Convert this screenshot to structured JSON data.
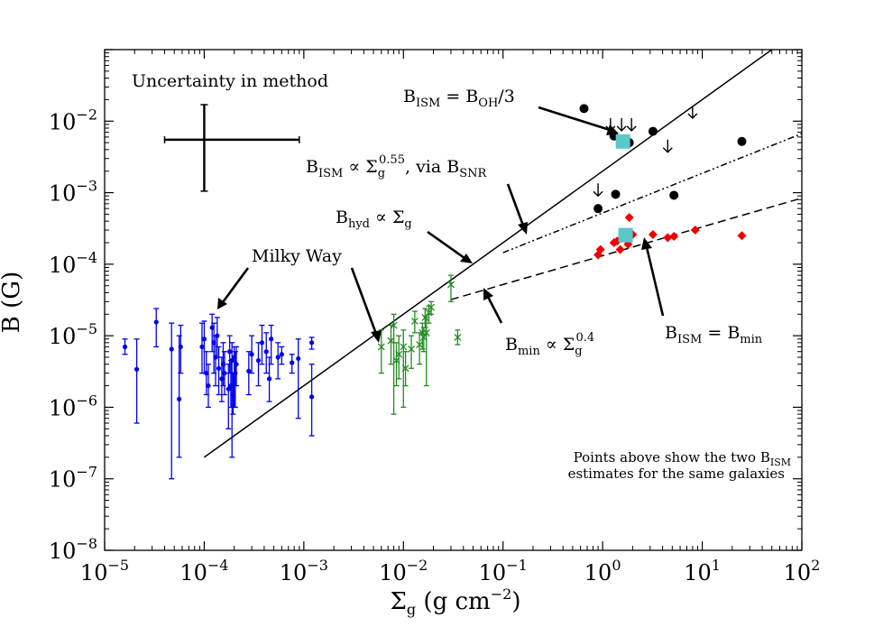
{
  "chart_data": {
    "type": "scatter",
    "xscale": "log",
    "yscale": "log",
    "xlim": [
      1e-05,
      100
    ],
    "ylim": [
      1e-08,
      0.1
    ],
    "xlabel": {
      "main": "Σ",
      "sub": "g",
      "rest": " (g cm",
      "sup": "−2",
      "close": ")"
    },
    "ylabel": "B (G)",
    "x_ticks": [
      {
        "base": "10",
        "exp": "−5",
        "value": 1e-05
      },
      {
        "base": "10",
        "exp": "−4",
        "value": 0.0001
      },
      {
        "base": "10",
        "exp": "−3",
        "value": 0.001
      },
      {
        "base": "10",
        "exp": "−2",
        "value": 0.01
      },
      {
        "base": "10",
        "exp": "−1",
        "value": 0.1
      },
      {
        "base": "10",
        "exp": "0",
        "value": 1
      },
      {
        "base": "10",
        "exp": "1",
        "value": 10
      },
      {
        "base": "10",
        "exp": "2",
        "value": 100
      }
    ],
    "y_ticks": [
      {
        "base": "10",
        "exp": "−8",
        "value": 1e-08
      },
      {
        "base": "10",
        "exp": "−7",
        "value": 1e-07
      },
      {
        "base": "10",
        "exp": "−6",
        "value": 1e-06
      },
      {
        "base": "10",
        "exp": "−5",
        "value": 1e-05
      },
      {
        "base": "10",
        "exp": "−4",
        "value": 0.0001
      },
      {
        "base": "10",
        "exp": "−3",
        "value": 0.001
      },
      {
        "base": "10",
        "exp": "−2",
        "value": 0.01
      }
    ],
    "lines": [
      {
        "name": "B_hyd ∝ Σ_g",
        "style": "solid",
        "x": [
          0.0001,
          100
        ],
        "y": [
          2e-07,
          0.2
        ]
      },
      {
        "name": "B_ISM ∝ Σ_g^0.55 via B_SNR",
        "style": "dashdotdot",
        "x": [
          0.1,
          100
        ],
        "y": [
          0.000145,
          0.0067
        ]
      },
      {
        "name": "B_min ∝ Σ_g^0.4",
        "style": "dashed",
        "x": [
          0.03,
          100
        ],
        "y": [
          3.2e-05,
          0.00084
        ]
      }
    ],
    "series": [
      {
        "name": "Milky Way",
        "color": "#0000ee",
        "marker": "dot",
        "points": [
          {
            "x": 1.6e-05,
            "y": 7e-06,
            "lo": 5.5e-06,
            "hi": 9e-06
          },
          {
            "x": 2.1e-05,
            "y": 3.4e-06,
            "lo": 6e-07,
            "hi": 9e-06
          },
          {
            "x": 3.3e-05,
            "y": 1.55e-05,
            "lo": 7e-06,
            "hi": 2.4e-05
          },
          {
            "x": 4.7e-05,
            "y": 6.5e-06,
            "lo": 1e-07,
            "hi": 1.5e-05
          },
          {
            "x": 5.6e-05,
            "y": 1.3e-06,
            "lo": 2e-07,
            "hi": 1e-05
          },
          {
            "x": 5.8e-05,
            "y": 7e-06,
            "lo": 3e-06,
            "hi": 1.4e-05
          },
          {
            "x": 9.5e-05,
            "y": 7e-06,
            "lo": 3e-06,
            "hi": 1.5e-05
          },
          {
            "x": 0.0001,
            "y": 9e-06,
            "lo": 3e-06,
            "hi": 1.6e-05
          },
          {
            "x": 0.000105,
            "y": 3e-06,
            "lo": 1.5e-06,
            "hi": 6e-06
          },
          {
            "x": 0.00011,
            "y": 2e-06,
            "lo": 1e-06,
            "hi": 4e-06
          },
          {
            "x": 0.00012,
            "y": 1.3e-05,
            "lo": 6e-06,
            "hi": 2e-05
          },
          {
            "x": 0.000125,
            "y": 8e-06,
            "lo": 3e-06,
            "hi": 1.5e-05
          },
          {
            "x": 0.00013,
            "y": 5e-06,
            "lo": 2e-06,
            "hi": 1e-05
          },
          {
            "x": 0.000135,
            "y": 1e-05,
            "lo": 5e-06,
            "hi": 1.8e-05
          },
          {
            "x": 0.00014,
            "y": 3.5e-06,
            "lo": 1.5e-06,
            "hi": 7e-06
          },
          {
            "x": 0.00015,
            "y": 2.5e-06,
            "lo": 1.2e-06,
            "hi": 5e-06
          },
          {
            "x": 0.000155,
            "y": 4e-06,
            "lo": 2e-06,
            "hi": 8e-06
          },
          {
            "x": 0.00016,
            "y": 3e-06,
            "lo": 1.5e-06,
            "hi": 6e-06
          },
          {
            "x": 0.000175,
            "y": 1.8e-06,
            "lo": 5e-07,
            "hi": 4e-06
          },
          {
            "x": 0.00018,
            "y": 6e-06,
            "lo": 3e-06,
            "hi": 1e-05
          },
          {
            "x": 0.000185,
            "y": 2e-06,
            "lo": 1e-06,
            "hi": 4.5e-06
          },
          {
            "x": 0.00019,
            "y": 4.5e-06,
            "lo": 2e-07,
            "hi": 8e-06
          },
          {
            "x": 0.000195,
            "y": 1.5e-06,
            "lo": 8e-07,
            "hi": 3e-06
          },
          {
            "x": 0.0002,
            "y": 5e-06,
            "lo": 1e-06,
            "hi": 7e-06
          },
          {
            "x": 0.000205,
            "y": 3e-06,
            "lo": 1e-06,
            "hi": 6e-06
          },
          {
            "x": 0.00021,
            "y": 4e-06,
            "lo": 2e-06,
            "hi": 7e-06
          },
          {
            "x": 0.00028,
            "y": 3.2e-06,
            "lo": 1.5e-06,
            "hi": 6e-06
          },
          {
            "x": 0.0003,
            "y": 5.5e-06,
            "lo": 3e-06,
            "hi": 1e-05
          },
          {
            "x": 0.00035,
            "y": 4.5e-06,
            "lo": 2e-06,
            "hi": 8e-06
          },
          {
            "x": 0.00038,
            "y": 8e-06,
            "lo": 4e-06,
            "hi": 1.4e-05
          },
          {
            "x": 0.00042,
            "y": 6e-06,
            "lo": 3e-06,
            "hi": 1.1e-05
          },
          {
            "x": 0.00045,
            "y": 2.5e-06,
            "lo": 1.2e-06,
            "hi": 5e-06
          },
          {
            "x": 0.00047,
            "y": 9e-06,
            "lo": 4e-06,
            "hi": 1.4e-05
          },
          {
            "x": 0.00055,
            "y": 5e-06,
            "lo": 2.5e-06,
            "hi": 8e-06
          },
          {
            "x": 0.0006,
            "y": 5.5e-06,
            "lo": 4e-06,
            "hi": 7e-06
          },
          {
            "x": 0.00076,
            "y": 4.2e-06,
            "lo": 3e-06,
            "hi": 5.5e-06
          },
          {
            "x": 0.00088,
            "y": 4.8e-06,
            "lo": 7e-07,
            "hi": 9e-06
          },
          {
            "x": 0.0012,
            "y": 8e-06,
            "lo": 6.5e-06,
            "hi": 9.5e-06
          },
          {
            "x": 0.0012,
            "y": 1.4e-06,
            "lo": 4e-07,
            "hi": 4e-06
          }
        ]
      },
      {
        "name": "Milky Way-like galaxies (green)",
        "color": "#228b22",
        "marker": "x",
        "points": [
          {
            "x": 0.006,
            "y": 7e-06,
            "lo": 3e-06,
            "hi": 1.2e-05
          },
          {
            "x": 0.0075,
            "y": 8.5e-06,
            "lo": 4e-06,
            "hi": 1.4e-05
          },
          {
            "x": 0.008,
            "y": 1.4e-05,
            "lo": 8e-07,
            "hi": 2e-05
          },
          {
            "x": 0.0085,
            "y": 4.5e-06,
            "lo": 2e-06,
            "hi": 8e-06
          },
          {
            "x": 0.009,
            "y": 5.5e-06,
            "lo": 2.5e-06,
            "hi": 1e-05
          },
          {
            "x": 0.01,
            "y": 7e-06,
            "lo": 1e-06,
            "hi": 1.2e-05
          },
          {
            "x": 0.0105,
            "y": 3.5e-06,
            "lo": 2e-06,
            "hi": 6e-06
          },
          {
            "x": 0.012,
            "y": 6.5e-06,
            "lo": 3.5e-06,
            "hi": 1e-05
          },
          {
            "x": 0.013,
            "y": 1.6e-05,
            "lo": 1.1e-05,
            "hi": 2.2e-05
          },
          {
            "x": 0.0145,
            "y": 7.5e-06,
            "lo": 4e-06,
            "hi": 1.1e-05
          },
          {
            "x": 0.0155,
            "y": 1.1e-05,
            "lo": 6.5e-06,
            "hi": 1.5e-05
          },
          {
            "x": 0.016,
            "y": 9.5e-06,
            "lo": 6e-06,
            "hi": 1.3e-05
          },
          {
            "x": 0.0165,
            "y": 1.8e-05,
            "lo": 1.3e-05,
            "hi": 2.4e-05
          },
          {
            "x": 0.017,
            "y": 1.1e-05,
            "lo": 2e-06,
            "hi": 1.8e-05
          },
          {
            "x": 0.018,
            "y": 2.1e-05,
            "lo": 1.5e-05,
            "hi": 2.6e-05
          },
          {
            "x": 0.019,
            "y": 2.5e-05,
            "lo": 2e-05,
            "hi": 3e-05
          },
          {
            "x": 0.03,
            "y": 5.2e-05,
            "lo": 3e-05,
            "hi": 7e-05
          },
          {
            "x": 0.035,
            "y": 9.5e-06,
            "lo": 7.5e-06,
            "hi": 1.2e-05
          }
        ]
      },
      {
        "name": "B_ISM = B_OH/3 estimates",
        "color": "#000000",
        "marker": "circle",
        "points": [
          {
            "x": 0.65,
            "y": 0.015
          },
          {
            "x": 1.3,
            "y": 0.0062
          },
          {
            "x": 1.85,
            "y": 0.005
          },
          {
            "x": 3.2,
            "y": 0.0072
          },
          {
            "x": 25,
            "y": 0.0052
          },
          {
            "x": 1.35,
            "y": 0.00095
          },
          {
            "x": 0.9,
            "y": 0.0006
          },
          {
            "x": 5.2,
            "y": 0.00092
          }
        ]
      },
      {
        "name": "B_ISM upper limits",
        "color": "#000000",
        "marker": "down-arrow",
        "points": [
          {
            "x": 1.2,
            "y": 0.009
          },
          {
            "x": 1.55,
            "y": 0.009
          },
          {
            "x": 1.95,
            "y": 0.009
          },
          {
            "x": 4.5,
            "y": 0.0045
          },
          {
            "x": 8.0,
            "y": 0.0135
          },
          {
            "x": 0.9,
            "y": 0.0011
          }
        ]
      },
      {
        "name": "B_ISM = B_min estimates",
        "color": "#ee0000",
        "marker": "diamond",
        "points": [
          {
            "x": 0.9,
            "y": 0.000135
          },
          {
            "x": 0.95,
            "y": 0.00016
          },
          {
            "x": 1.3,
            "y": 0.0002
          },
          {
            "x": 1.4,
            "y": 0.00021
          },
          {
            "x": 1.5,
            "y": 0.00016
          },
          {
            "x": 1.55,
            "y": 0.00023
          },
          {
            "x": 1.65,
            "y": 0.00025
          },
          {
            "x": 1.8,
            "y": 0.00019
          },
          {
            "x": 2.0,
            "y": 0.00026
          },
          {
            "x": 1.85,
            "y": 0.00045
          },
          {
            "x": 3.2,
            "y": 0.00026
          },
          {
            "x": 4.5,
            "y": 0.000235
          },
          {
            "x": 5.2,
            "y": 0.000245
          },
          {
            "x": 8.5,
            "y": 0.0003
          },
          {
            "x": 25,
            "y": 0.00025
          }
        ]
      },
      {
        "name": "Median (cyan squares)",
        "color": "#5bc8c8",
        "marker": "square",
        "points": [
          {
            "x": 1.6,
            "y": 0.0052
          },
          {
            "x": 1.7,
            "y": 0.000255
          }
        ]
      }
    ],
    "uncertainty_cross": {
      "x": 0.0001,
      "y": 0.0055,
      "x_lo": 4e-05,
      "x_hi": 0.0009,
      "y_lo": 0.00105,
      "y_hi": 0.017
    },
    "annotations": {
      "uncertainty": "Uncertainty in method",
      "milky_way": "Milky Way",
      "boh": {
        "a": "B",
        "a_sub": "ISM",
        "eq": " = B",
        "b_sub": "OH",
        "rest": "/3"
      },
      "bsnr": {
        "a": "B",
        "a_sub": "ISM",
        "prop": " ∝ Σ",
        "sig_sub": "g",
        "exp": "0.55",
        "mid": ",  via B",
        "b_sub": "SNR"
      },
      "bhyd": {
        "a": "B",
        "a_sub": "hyd",
        "prop": " ∝ Σ",
        "sig_sub": "g"
      },
      "bmin_law": {
        "a": "B",
        "a_sub": "min",
        "prop": " ∝ Σ",
        "sig_sub": "g",
        "exp": "0.4"
      },
      "bism_min": {
        "a": "B",
        "a_sub": "ISM",
        "eq": " = B",
        "b_sub": "min"
      },
      "note_line1": {
        "pre": "Points above show the two B",
        "sub": "ISM"
      },
      "note_line2": "estimates for the same galaxies"
    }
  }
}
